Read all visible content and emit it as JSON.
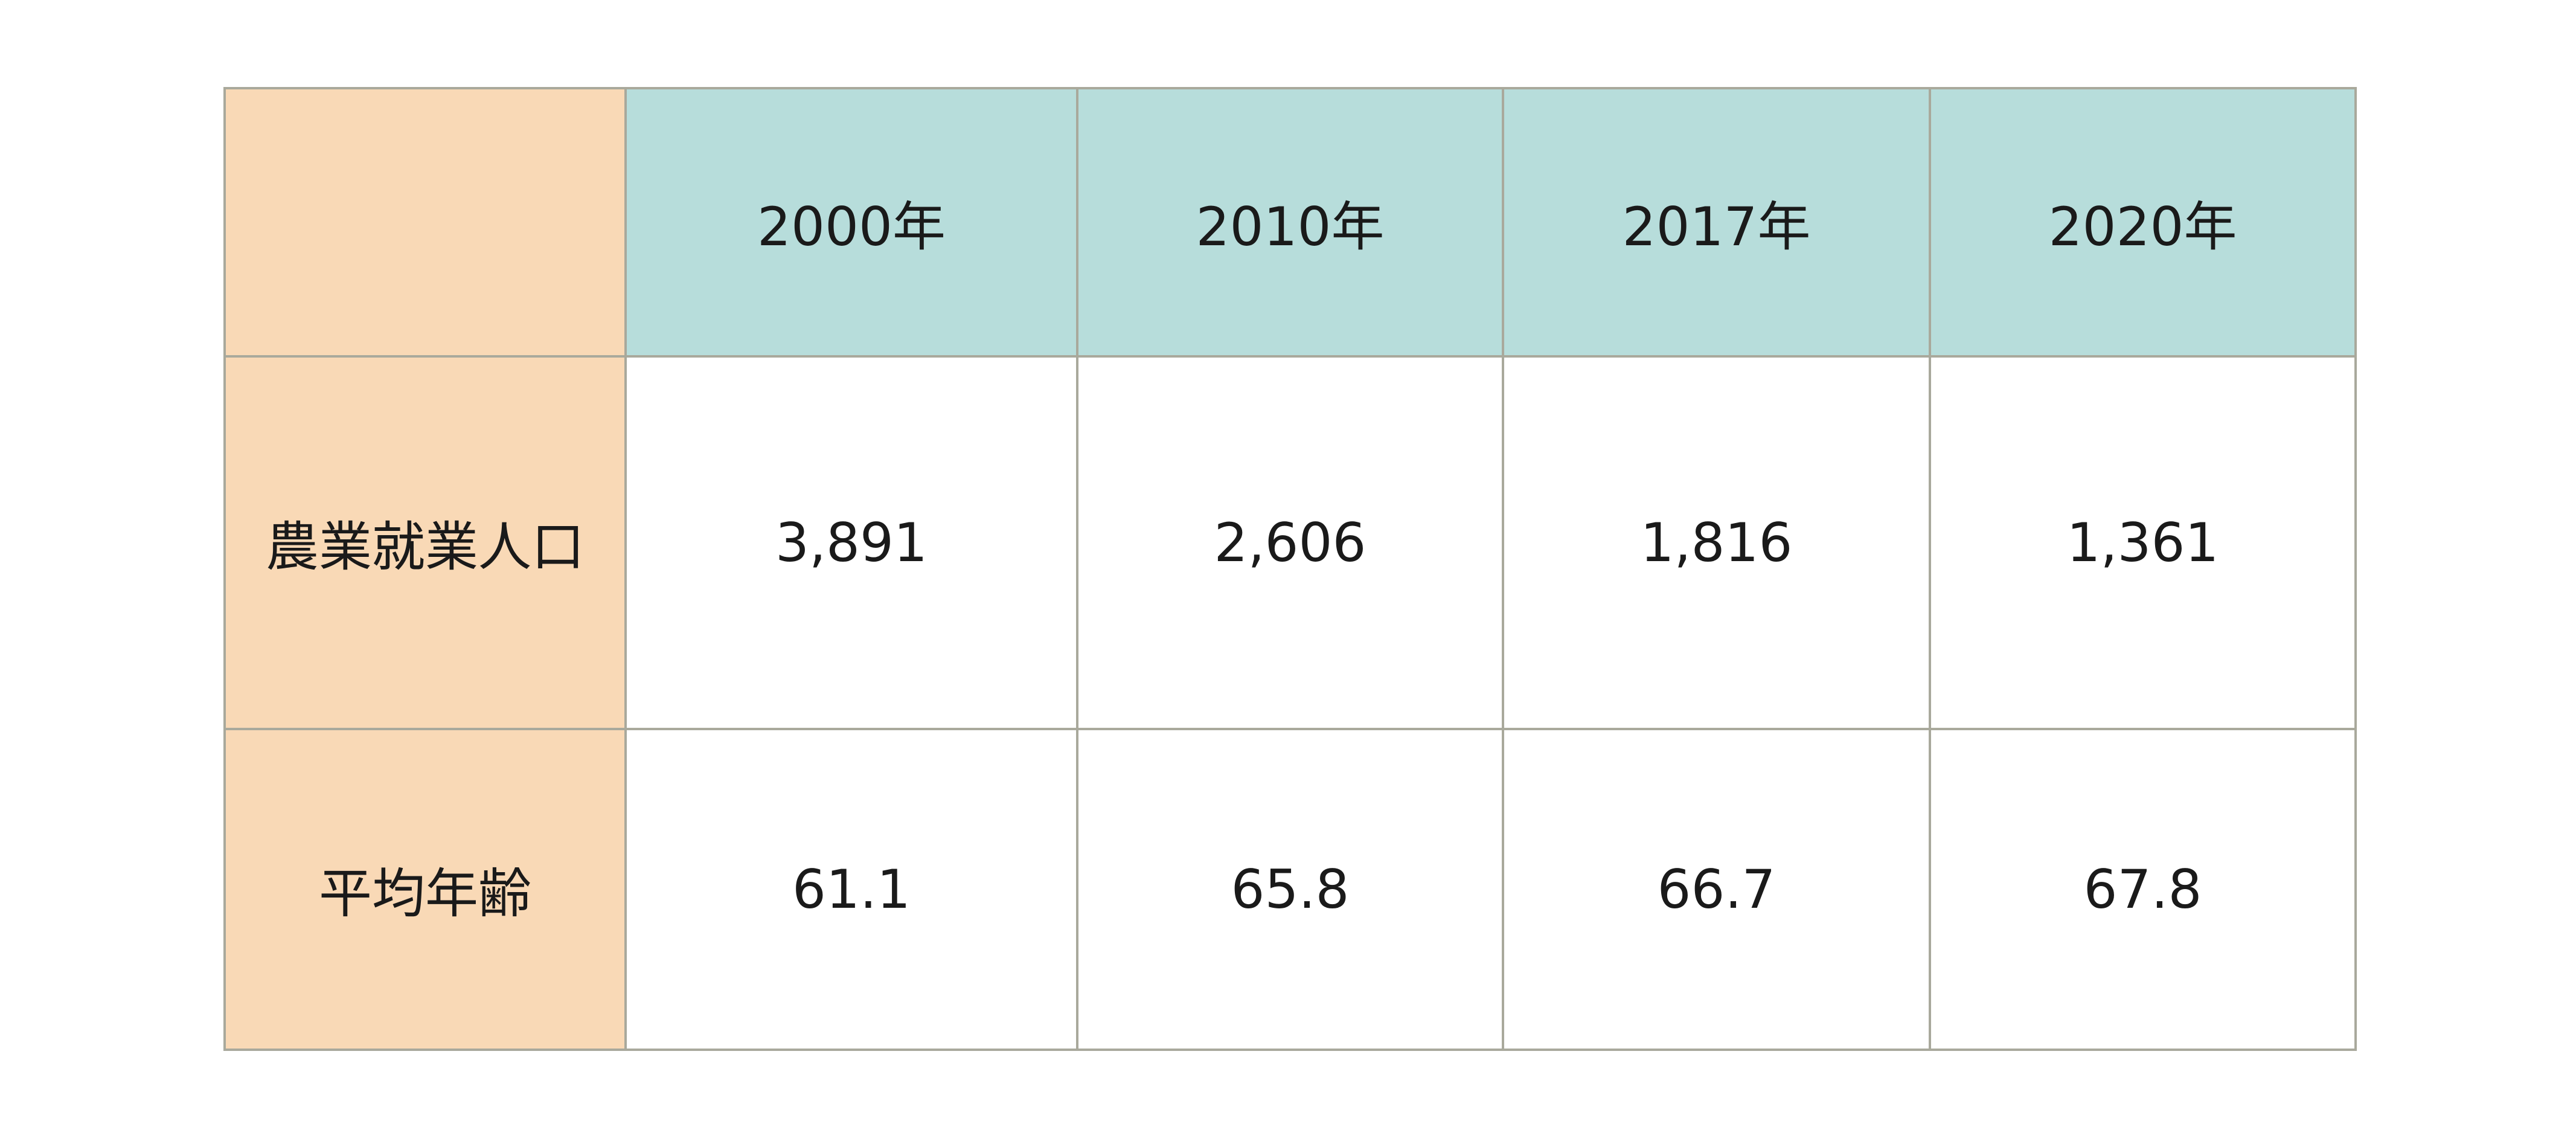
{
  "table": {
    "header": [
      "2000年",
      "2010年",
      "2017年",
      "2020年"
    ],
    "rows": [
      [
        "農業就業人口",
        "3,891",
        "2,606",
        "1,816",
        "1,361"
      ],
      [
        "平均年齢",
        "61.1",
        "65.8",
        "66.7",
        "67.8"
      ]
    ]
  }
}
